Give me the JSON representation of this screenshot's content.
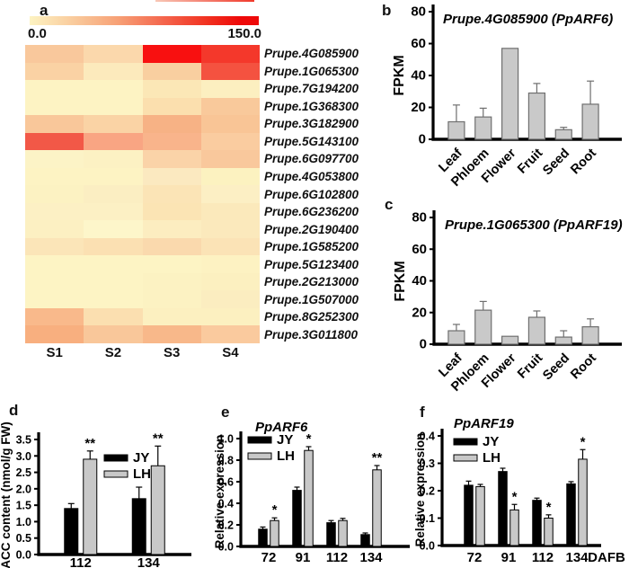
{
  "figure": {
    "panel_labels": {
      "a": "a",
      "b": "b",
      "c": "c",
      "d": "d",
      "e": "e",
      "f": "f"
    }
  },
  "chart_data": [
    {
      "type": "heatmap",
      "panel": "a",
      "scale": {
        "min": 0.0,
        "max": 150.0,
        "min_label": "0.0",
        "max_label": "150.0"
      },
      "columns": [
        "S1",
        "S2",
        "S3",
        "S4"
      ],
      "rows": [
        "Prupe.4G085900",
        "Prupe.1G065300",
        "Prupe.7G194200",
        "Prupe.1G368300",
        "Prupe.3G182900",
        "Prupe.5G143100",
        "Prupe.6G097700",
        "Prupe.4G053800",
        "Prupe.6G102800",
        "Prupe.6G236200",
        "Prupe.2G190400",
        "Prupe.1G585200",
        "Prupe.5G123400",
        "Prupe.2G213000",
        "Prupe.1G507000",
        "Prupe.8G252300",
        "Prupe.3G011800"
      ],
      "values": [
        [
          38,
          26,
          150,
          132
        ],
        [
          30,
          12,
          31,
          104
        ],
        [
          8,
          8,
          16,
          10
        ],
        [
          8,
          8,
          20,
          36
        ],
        [
          38,
          28,
          52,
          34
        ],
        [
          105,
          62,
          45,
          30
        ],
        [
          9,
          10,
          26,
          36
        ],
        [
          8,
          8,
          13,
          6
        ],
        [
          8,
          10,
          18,
          10
        ],
        [
          9,
          9,
          18,
          13
        ],
        [
          9,
          6,
          10,
          13
        ],
        [
          18,
          22,
          28,
          19
        ],
        [
          7,
          7,
          7,
          8
        ],
        [
          7,
          7,
          9,
          10
        ],
        [
          7,
          7,
          9,
          12
        ],
        [
          48,
          21,
          10,
          10
        ],
        [
          58,
          38,
          50,
          32
        ]
      ],
      "colors": [
        [
          "#f9c89c",
          "#fbd8ac",
          "#f81010",
          "#f4382b"
        ],
        [
          "#fad2a4",
          "#fceabc",
          "#f9cfa0",
          "#f45240"
        ],
        [
          "#fdf3c3",
          "#fdf3c3",
          "#fbe7b6",
          "#fcefc0"
        ],
        [
          "#fdf3c3",
          "#fdf3c3",
          "#fbdfae",
          "#f9c99b"
        ],
        [
          "#f9c79a",
          "#fad3a5",
          "#f7b285",
          "#f9c596"
        ],
        [
          "#f25847",
          "#f9a583",
          "#f9b48b",
          "#facca0"
        ],
        [
          "#fcf3c6",
          "#fcf1c3",
          "#fad3a8",
          "#f9c89c"
        ],
        [
          "#fdf3c3",
          "#fdf3c3",
          "#fbe9c0",
          "#fcf2c0"
        ],
        [
          "#fcf2c2",
          "#fbeec2",
          "#fbe4b6",
          "#fcefc4"
        ],
        [
          "#fcf0c4",
          "#fcf0c4",
          "#fbe4b4",
          "#fbe9bb"
        ],
        [
          "#fcf0c2",
          "#fdf6ca",
          "#fcedc0",
          "#fbe9bc"
        ],
        [
          "#fbe5b8",
          "#fbe0b2",
          "#fad9ad",
          "#fbe3b6"
        ],
        [
          "#fdf4c4",
          "#fdf4c4",
          "#fdf4c4",
          "#fdf2c2"
        ],
        [
          "#fdf4c4",
          "#fdf4c4",
          "#fcf2c2",
          "#fcf0c0"
        ],
        [
          "#fdf4c4",
          "#fdf4c4",
          "#fcf2c2",
          "#fbedc0"
        ],
        [
          "#f9b98b",
          "#fbdfb0",
          "#fcf0c0",
          "#fcf0c0"
        ],
        [
          "#f8af7f",
          "#f9c79a",
          "#f8b88a",
          "#faca9e"
        ]
      ]
    },
    {
      "type": "bar",
      "panel": "b",
      "title": "Prupe.4G085900 (PpARF6)",
      "ylabel": "FPKM",
      "ylim": [
        0,
        80
      ],
      "yticks": [
        0,
        20,
        40,
        60,
        80
      ],
      "tick_decimals": 0,
      "categories": [
        "Leaf",
        "Phloem",
        "Flower",
        "Fruit",
        "Seed",
        "Root"
      ],
      "values": [
        11,
        14,
        57,
        29,
        6,
        22
      ],
      "errors": [
        10.5,
        5.5,
        0,
        6,
        1.5,
        14.5
      ],
      "bar_color": "#c9c9c9"
    },
    {
      "type": "bar",
      "panel": "c",
      "title": "Prupe.1G065300 (PpARF19)",
      "ylabel": "FPKM",
      "ylim": [
        0,
        80
      ],
      "yticks": [
        0,
        20,
        40,
        60,
        80
      ],
      "tick_decimals": 0,
      "categories": [
        "Leaf",
        "Phloem",
        "Flower",
        "Fruit",
        "Seed",
        "Root"
      ],
      "values": [
        8.5,
        21.5,
        5,
        17,
        4.5,
        11
      ],
      "errors": [
        4,
        5.5,
        0,
        4,
        4,
        5
      ],
      "bar_color": "#c9c9c9"
    },
    {
      "type": "grouped_bar",
      "panel": "d",
      "title": "",
      "ylabel": "ACC content (nmol/g FW)",
      "ylim": [
        0,
        3.5
      ],
      "yticks": [
        0.0,
        0.5,
        1.0,
        1.5,
        2.0,
        2.5,
        3.0,
        3.5
      ],
      "tick_decimals": 1,
      "categories": [
        "112",
        "134"
      ],
      "series": [
        {
          "name": "JY",
          "color": "#000000",
          "values": [
            1.4,
            1.7
          ],
          "errors": [
            0.15,
            0.35
          ]
        },
        {
          "name": "LH",
          "color": "#c8c8c8",
          "values": [
            2.9,
            2.7
          ],
          "errors": [
            0.25,
            0.6
          ]
        }
      ],
      "significance": [
        {
          "category": "112",
          "series": "LH",
          "marker": "**"
        },
        {
          "category": "134",
          "series": "LH",
          "marker": "**"
        }
      ]
    },
    {
      "type": "grouped_bar",
      "panel": "e",
      "title": "PpARF6",
      "ylabel": "Relative expression",
      "ylim": [
        0,
        1.0
      ],
      "yticks": [
        0.0,
        0.2,
        0.4,
        0.6,
        0.8,
        1.0
      ],
      "tick_decimals": 1,
      "categories": [
        "72",
        "91",
        "112",
        "134"
      ],
      "series": [
        {
          "name": "JY",
          "color": "#000000",
          "values": [
            0.16,
            0.52,
            0.22,
            0.11
          ],
          "errors": [
            0.02,
            0.03,
            0.02,
            0.015
          ]
        },
        {
          "name": "LH",
          "color": "#c8c8c8",
          "values": [
            0.24,
            0.89,
            0.24,
            0.71
          ],
          "errors": [
            0.025,
            0.035,
            0.02,
            0.04
          ]
        }
      ],
      "significance": [
        {
          "category": "72",
          "series": "LH",
          "marker": "*"
        },
        {
          "category": "91",
          "series": "LH",
          "marker": "*"
        },
        {
          "category": "134",
          "series": "LH",
          "marker": "**"
        }
      ]
    },
    {
      "type": "grouped_bar",
      "panel": "f",
      "title": "PpARF19",
      "ylabel": "Relative expression",
      "ylim": [
        0,
        0.4
      ],
      "yticks": [
        0.0,
        0.1,
        0.2,
        0.3,
        0.4
      ],
      "tick_decimals": 1,
      "categories": [
        "72",
        "91",
        "112",
        "134"
      ],
      "xlabel_suffix": "DAFB",
      "series": [
        {
          "name": "JY",
          "color": "#000000",
          "values": [
            0.22,
            0.27,
            0.165,
            0.225
          ],
          "errors": [
            0.015,
            0.012,
            0.008,
            0.008
          ]
        },
        {
          "name": "LH",
          "color": "#c8c8c8",
          "values": [
            0.215,
            0.13,
            0.1,
            0.315
          ],
          "errors": [
            0.008,
            0.02,
            0.012,
            0.035
          ]
        }
      ],
      "significance": [
        {
          "category": "91",
          "series": "LH",
          "marker": "*"
        },
        {
          "category": "112",
          "series": "LH",
          "marker": "*"
        },
        {
          "category": "134",
          "series": "LH",
          "marker": "*"
        }
      ]
    }
  ]
}
